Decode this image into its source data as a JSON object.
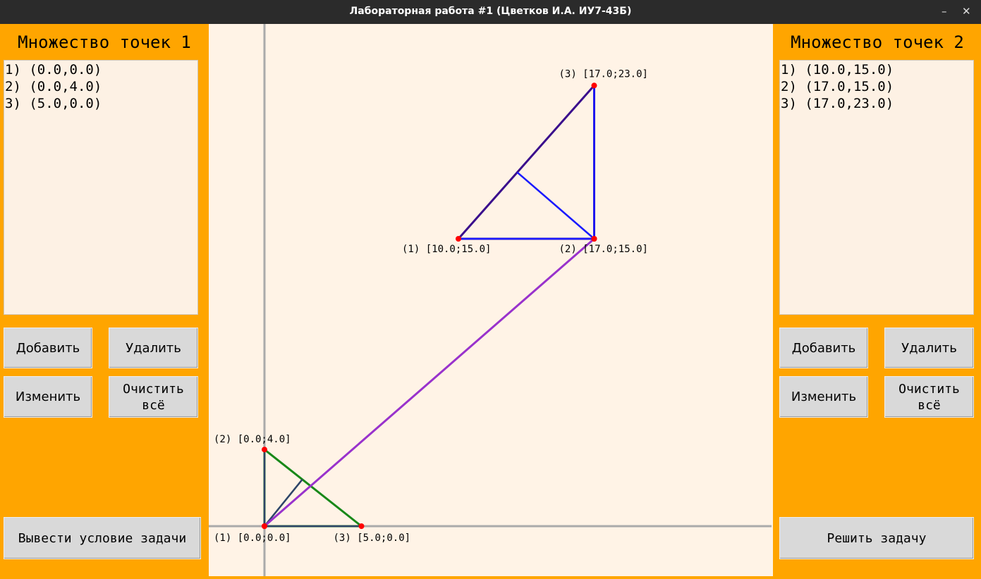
{
  "window": {
    "title": "Лабораторная работа #1 (Цветков И.А. ИУ7-43Б)",
    "minimize_glyph": "–",
    "close_glyph": "✕"
  },
  "left_panel": {
    "title": "Множество точек 1",
    "items": [
      "1) (0.0,0.0)",
      "2) (0.0,4.0)",
      "3) (5.0,0.0)"
    ],
    "add_label": "Добавить",
    "delete_label": "Удалить",
    "edit_label": "Изменить",
    "clear_label": "Очистить\nвсё",
    "condition_label": "Вывести условие задачи"
  },
  "right_panel": {
    "title": "Множество точек 2",
    "items": [
      "1) (10.0,15.0)",
      "2) (17.0,15.0)",
      "3) (17.0,23.0)"
    ],
    "add_label": "Добавить",
    "delete_label": "Удалить",
    "edit_label": "Изменить",
    "clear_label": "Очистить\nвсё",
    "solve_label": "Решить задачу"
  },
  "canvas": {
    "triangle1": {
      "points": [
        [
          0.0,
          0.0
        ],
        [
          0.0,
          4.0
        ],
        [
          5.0,
          0.0
        ]
      ],
      "labels": [
        "(1) [0.0;0.0]",
        "(2) [0.0;4.0]",
        "(3) [5.0;0.0]"
      ]
    },
    "triangle2": {
      "points": [
        [
          10.0,
          15.0
        ],
        [
          17.0,
          15.0
        ],
        [
          17.0,
          23.0
        ]
      ],
      "labels": [
        "(1) [10.0;15.0]",
        "(2) [17.0;15.0]",
        "(3) [17.0;23.0]"
      ]
    },
    "colors": {
      "background": "#fff3e6",
      "panel": "#ffa500",
      "axis": "#aaaaaa",
      "triangle1": "#188818",
      "triangle2": "#3a0d8c",
      "altitudes1": "#2d4468",
      "altitudes2": "#1a1aff",
      "connector": "#9932cc",
      "point": "#ff0000"
    }
  }
}
